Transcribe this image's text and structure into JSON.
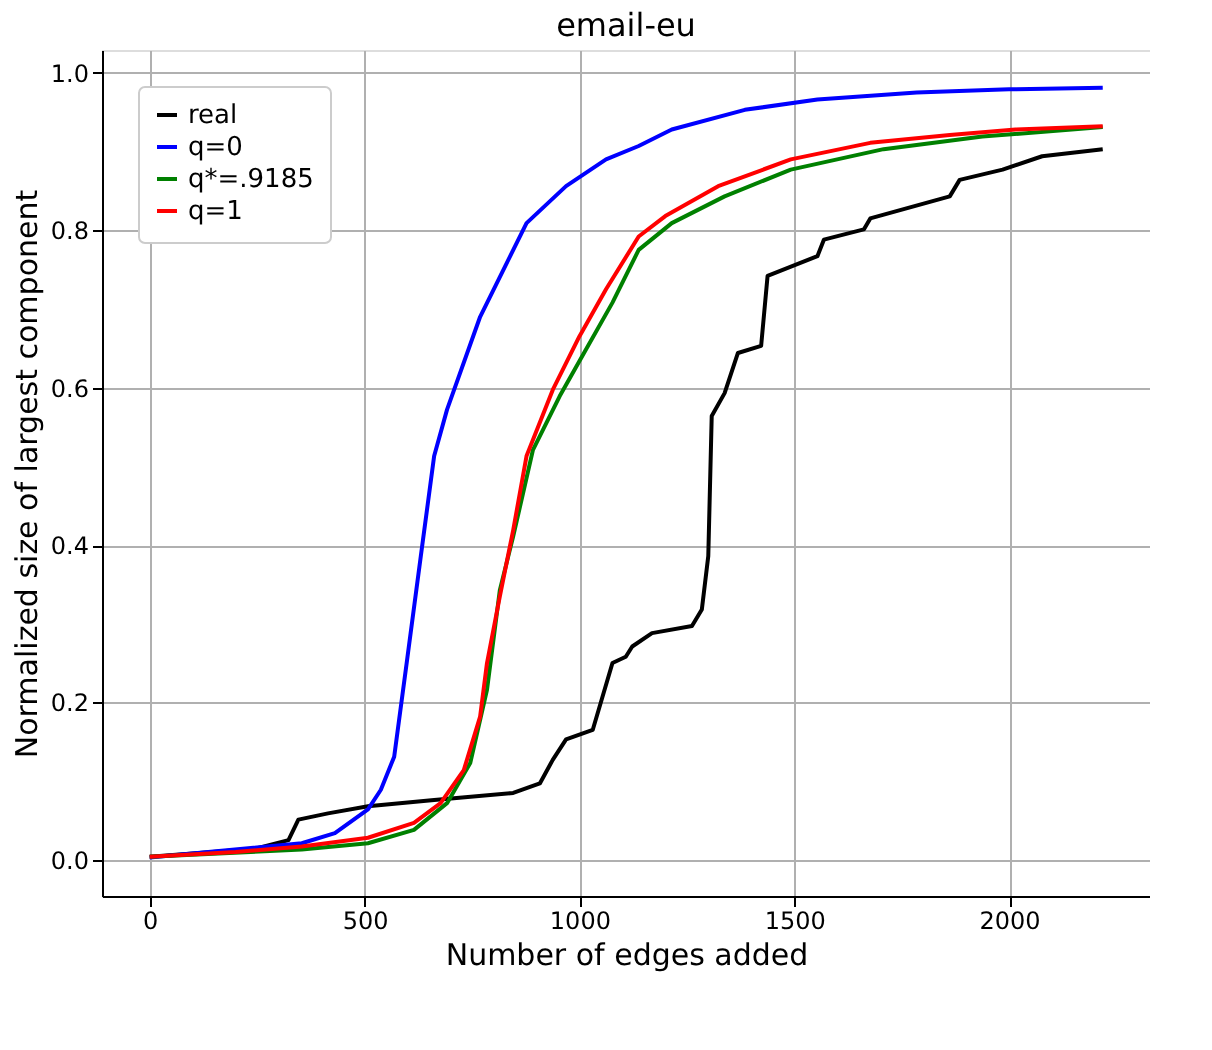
{
  "chart_data": {
    "type": "line",
    "title": "email-eu",
    "xlabel": "Number of edges added",
    "ylabel": "Normalized size of largest component",
    "xlim": [
      -111,
      2328
    ],
    "ylim": [
      -0.046,
      1.029
    ],
    "xticks": [
      0,
      500,
      1000,
      1500,
      2000
    ],
    "yticks": [
      {
        "value": 0,
        "label": "0.0"
      },
      0.2,
      0.4,
      0.6,
      0.8,
      {
        "value": 1,
        "label": "1.0"
      }
    ],
    "grid": true,
    "legend": "top left",
    "marker": "none",
    "line_style": "solid",
    "series": [
      {
        "name": "real",
        "color": "#000000",
        "x": [
          0,
          246,
          323,
          346,
          415,
          508,
          662,
          846,
          908,
          938,
          969,
          1031,
          1077,
          1108,
          1123,
          1169,
          1262,
          1285,
          1300,
          1308,
          1338,
          1369,
          1423,
          1438,
          1554,
          1569,
          1662,
          1677,
          1862,
          1885,
          1985,
          2077,
          2218
        ],
        "values": [
          0.004,
          0.014,
          0.025,
          0.051,
          0.059,
          0.068,
          0.076,
          0.085,
          0.097,
          0.127,
          0.153,
          0.165,
          0.25,
          0.258,
          0.271,
          0.288,
          0.297,
          0.318,
          0.386,
          0.564,
          0.593,
          0.644,
          0.653,
          0.742,
          0.767,
          0.788,
          0.801,
          0.815,
          0.843,
          0.864,
          0.877,
          0.894,
          0.903
        ]
      },
      {
        "name": "q=0",
        "color": "#0000ff",
        "x": [
          0,
          354,
          431,
          508,
          538,
          569,
          600,
          631,
          662,
          692,
          769,
          877,
          969,
          1062,
          1138,
          1215,
          1385,
          1554,
          1785,
          2000,
          2218
        ],
        "values": [
          0.003,
          0.021,
          0.034,
          0.064,
          0.089,
          0.131,
          0.258,
          0.386,
          0.513,
          0.572,
          0.69,
          0.809,
          0.856,
          0.89,
          0.907,
          0.928,
          0.953,
          0.966,
          0.975,
          0.979,
          0.981
        ]
      },
      {
        "name": "q*=.9185",
        "color": "#008000",
        "x": [
          0,
          354,
          508,
          615,
          692,
          746,
          785,
          815,
          846,
          892,
          954,
          1015,
          1077,
          1138,
          1215,
          1338,
          1492,
          1708,
          1938,
          2218
        ],
        "values": [
          0.004,
          0.013,
          0.021,
          0.038,
          0.072,
          0.123,
          0.216,
          0.343,
          0.411,
          0.521,
          0.589,
          0.648,
          0.708,
          0.775,
          0.809,
          0.843,
          0.877,
          0.903,
          0.919,
          0.931
        ]
      },
      {
        "name": "q=1",
        "color": "#ff0000",
        "x": [
          0,
          200,
          354,
          508,
          615,
          677,
          731,
          769,
          785,
          815,
          846,
          877,
          938,
          1000,
          1062,
          1138,
          1200,
          1323,
          1492,
          1677,
          1862,
          2015,
          2218
        ],
        "values": [
          0.004,
          0.01,
          0.017,
          0.028,
          0.047,
          0.072,
          0.114,
          0.182,
          0.25,
          0.335,
          0.419,
          0.513,
          0.597,
          0.665,
          0.725,
          0.792,
          0.818,
          0.856,
          0.89,
          0.911,
          0.921,
          0.928,
          0.932
        ]
      }
    ]
  }
}
